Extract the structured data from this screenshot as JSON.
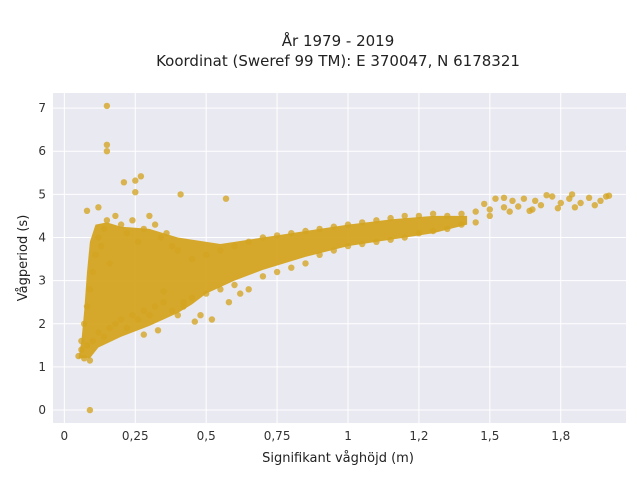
{
  "chart_data": {
    "type": "scatter",
    "title_line1": "År 1979 - 2019",
    "title_line2": "Koordinat (Sweref 99 TM): E 370047, N 6178321",
    "xlabel": "Signifikant våghöjd (m)",
    "ylabel": "Vågperiod (s)",
    "xlim": [
      -0.04,
      1.98
    ],
    "ylim": [
      -0.3,
      7.35
    ],
    "grid": true,
    "point_color": "#d4a421",
    "plot_background": "#e9e9f1",
    "x_ticks": [
      {
        "value": 0,
        "label": "0"
      },
      {
        "value": 0.25,
        "label": "0,25"
      },
      {
        "value": 0.5,
        "label": "0,5"
      },
      {
        "value": 0.75,
        "label": "0,75"
      },
      {
        "value": 1,
        "label": "1"
      },
      {
        "value": 1.25,
        "label": "1,2"
      },
      {
        "value": 1.5,
        "label": "1,5"
      },
      {
        "value": 1.75,
        "label": "1,8"
      }
    ],
    "y_ticks": [
      {
        "value": 0,
        "label": "0"
      },
      {
        "value": 1,
        "label": "1"
      },
      {
        "value": 2,
        "label": "2"
      },
      {
        "value": 3,
        "label": "3"
      },
      {
        "value": 4,
        "label": "4"
      },
      {
        "value": 5,
        "label": "5"
      },
      {
        "value": 6,
        "label": "6"
      },
      {
        "value": 7,
        "label": "7"
      }
    ],
    "series": [
      {
        "points": [
          [
            0.09,
            0.0
          ],
          [
            0.15,
            7.05
          ],
          [
            0.15,
            6.15
          ],
          [
            0.15,
            6.0
          ],
          [
            0.27,
            5.42
          ],
          [
            0.25,
            5.32
          ],
          [
            0.21,
            5.28
          ],
          [
            0.25,
            5.05
          ],
          [
            0.41,
            5.0
          ],
          [
            0.57,
            4.9
          ],
          [
            0.08,
            4.62
          ],
          [
            0.12,
            4.7
          ],
          [
            0.05,
            1.25
          ],
          [
            0.06,
            1.4
          ],
          [
            0.07,
            1.2
          ],
          [
            0.08,
            1.5
          ],
          [
            0.09,
            1.15
          ],
          [
            0.06,
            1.6
          ],
          [
            0.07,
            2.0
          ],
          [
            0.08,
            2.4
          ],
          [
            0.09,
            2.8
          ],
          [
            0.1,
            3.2
          ],
          [
            0.11,
            3.6
          ],
          [
            0.12,
            4.0
          ],
          [
            0.13,
            3.8
          ],
          [
            0.14,
            4.2
          ],
          [
            0.15,
            4.4
          ],
          [
            0.16,
            3.4
          ],
          [
            0.18,
            4.5
          ],
          [
            0.2,
            4.3
          ],
          [
            0.22,
            4.1
          ],
          [
            0.24,
            4.4
          ],
          [
            0.26,
            3.9
          ],
          [
            0.28,
            4.2
          ],
          [
            0.3,
            4.5
          ],
          [
            0.32,
            4.3
          ],
          [
            0.34,
            4.0
          ],
          [
            0.36,
            4.1
          ],
          [
            0.38,
            3.8
          ],
          [
            0.4,
            3.7
          ],
          [
            0.1,
            1.6
          ],
          [
            0.12,
            1.8
          ],
          [
            0.14,
            1.7
          ],
          [
            0.16,
            1.9
          ],
          [
            0.18,
            2.0
          ],
          [
            0.2,
            2.1
          ],
          [
            0.22,
            1.9
          ],
          [
            0.24,
            2.2
          ],
          [
            0.26,
            2.1
          ],
          [
            0.28,
            2.3
          ],
          [
            0.3,
            2.2
          ],
          [
            0.32,
            2.4
          ],
          [
            0.35,
            2.5
          ],
          [
            0.38,
            2.3
          ],
          [
            0.42,
            2.4
          ],
          [
            0.45,
            2.6
          ],
          [
            0.5,
            2.7
          ],
          [
            0.55,
            2.8
          ],
          [
            0.6,
            2.9
          ],
          [
            0.65,
            2.8
          ],
          [
            0.7,
            3.1
          ],
          [
            0.75,
            3.2
          ],
          [
            0.8,
            3.3
          ],
          [
            0.85,
            3.4
          ],
          [
            0.45,
            3.5
          ],
          [
            0.5,
            3.6
          ],
          [
            0.55,
            3.7
          ],
          [
            0.6,
            3.8
          ],
          [
            0.65,
            3.9
          ],
          [
            0.7,
            4.0
          ],
          [
            0.75,
            4.05
          ],
          [
            0.8,
            4.1
          ],
          [
            0.85,
            4.15
          ],
          [
            0.9,
            4.2
          ],
          [
            0.95,
            4.25
          ],
          [
            1.0,
            4.3
          ],
          [
            1.05,
            4.35
          ],
          [
            1.1,
            4.4
          ],
          [
            1.15,
            4.45
          ],
          [
            1.2,
            4.5
          ],
          [
            1.25,
            4.5
          ],
          [
            1.3,
            4.55
          ],
          [
            0.9,
            3.6
          ],
          [
            0.95,
            3.7
          ],
          [
            1.0,
            3.8
          ],
          [
            1.05,
            3.85
          ],
          [
            1.1,
            3.9
          ],
          [
            1.15,
            3.95
          ],
          [
            1.2,
            4.0
          ],
          [
            1.25,
            4.1
          ],
          [
            1.3,
            4.15
          ],
          [
            1.35,
            4.2
          ],
          [
            1.4,
            4.3
          ],
          [
            1.45,
            4.35
          ],
          [
            1.35,
            4.5
          ],
          [
            1.4,
            4.55
          ],
          [
            1.45,
            4.6
          ],
          [
            1.5,
            4.65
          ],
          [
            1.55,
            4.7
          ],
          [
            1.48,
            4.78
          ],
          [
            1.52,
            4.9
          ],
          [
            1.55,
            4.92
          ],
          [
            1.58,
            4.85
          ],
          [
            1.6,
            4.72
          ],
          [
            1.62,
            4.9
          ],
          [
            1.65,
            4.65
          ],
          [
            1.68,
            4.75
          ],
          [
            1.7,
            4.98
          ],
          [
            1.72,
            4.95
          ],
          [
            1.75,
            4.8
          ],
          [
            1.78,
            4.9
          ],
          [
            1.8,
            4.7
          ],
          [
            1.82,
            4.8
          ],
          [
            1.85,
            4.92
          ],
          [
            1.87,
            4.75
          ],
          [
            1.89,
            4.85
          ],
          [
            1.91,
            4.95
          ],
          [
            1.92,
            4.97
          ],
          [
            1.64,
            4.62
          ],
          [
            1.57,
            4.6
          ],
          [
            1.66,
            4.85
          ],
          [
            1.74,
            4.68
          ],
          [
            1.79,
            5.0
          ],
          [
            1.5,
            4.5
          ],
          [
            0.35,
            2.75
          ],
          [
            0.42,
            2.5
          ],
          [
            0.48,
            2.2
          ],
          [
            0.52,
            2.1
          ],
          [
            0.58,
            2.5
          ],
          [
            0.62,
            2.7
          ],
          [
            0.46,
            2.05
          ],
          [
            0.4,
            2.2
          ],
          [
            0.33,
            1.85
          ],
          [
            0.28,
            1.75
          ]
        ]
      }
    ]
  }
}
